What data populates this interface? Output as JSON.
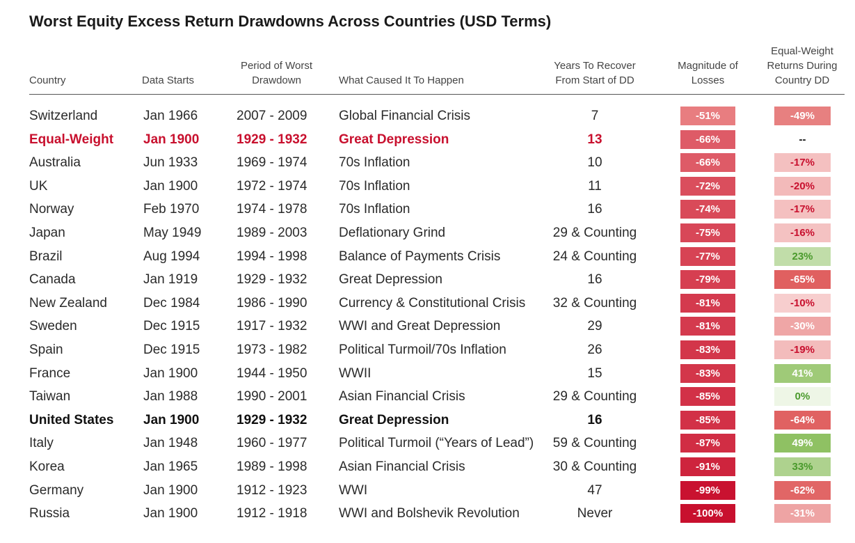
{
  "title": "Worst Equity Excess Return Drawdowns Across Countries (USD Terms)",
  "headers": {
    "country": "Country",
    "data_starts": "Data Starts",
    "period": "Period of Worst Drawdown",
    "cause": "What Caused It To Happen",
    "years": "Years To Recover From Start of DD",
    "magnitude": "Magnitude of Losses",
    "eqw": "Equal-Weight Returns During Country DD"
  },
  "colors": {
    "accent": "#c8102e",
    "negative_dark": "#c8102e",
    "negative_light": "#fbe2e2",
    "positive_dark": "#8fc163",
    "positive_light": "#eef6e6",
    "positive_text": "#4a9a2c",
    "negative_text": "#ffffff"
  },
  "chart_data": {
    "type": "table",
    "columns": [
      "Country",
      "Data Starts",
      "Period of Worst Drawdown",
      "What Caused It To Happen",
      "Years To Recover From Start of DD",
      "Magnitude of Losses",
      "Equal-Weight Returns During Country DD"
    ],
    "rows": [
      {
        "country": "Switzerland",
        "start": "Jan 1966",
        "period": "2007 - 2009",
        "cause": "Global Financial Crisis",
        "years": "7",
        "magnitude": "-51%",
        "mag_value": -51,
        "eqw": "-49%",
        "eqw_value": -49,
        "style": "normal"
      },
      {
        "country": "Equal-Weight",
        "start": "Jan 1900",
        "period": "1929 - 1932",
        "cause": "Great Depression",
        "years": "13",
        "magnitude": "-66%",
        "mag_value": -66,
        "eqw": "--",
        "eqw_value": null,
        "style": "accent"
      },
      {
        "country": "Australia",
        "start": "Jun 1933",
        "period": "1969 - 1974",
        "cause": "70s Inflation",
        "years": "10",
        "magnitude": "-66%",
        "mag_value": -66,
        "eqw": "-17%",
        "eqw_value": -17,
        "style": "normal"
      },
      {
        "country": "UK",
        "start": "Jan 1900",
        "period": "1972 - 1974",
        "cause": "70s Inflation",
        "years": "11",
        "magnitude": "-72%",
        "mag_value": -72,
        "eqw": "-20%",
        "eqw_value": -20,
        "style": "normal"
      },
      {
        "country": "Norway",
        "start": "Feb 1970",
        "period": "1974 - 1978",
        "cause": "70s Inflation",
        "years": "16",
        "magnitude": "-74%",
        "mag_value": -74,
        "eqw": "-17%",
        "eqw_value": -17,
        "style": "normal"
      },
      {
        "country": "Japan",
        "start": "May 1949",
        "period": "1989 - 2003",
        "cause": "Deflationary Grind",
        "years": "29 & Counting",
        "magnitude": "-75%",
        "mag_value": -75,
        "eqw": "-16%",
        "eqw_value": -16,
        "style": "normal"
      },
      {
        "country": "Brazil",
        "start": "Aug 1994",
        "period": "1994 - 1998",
        "cause": "Balance of Payments Crisis",
        "years": "24 & Counting",
        "magnitude": "-77%",
        "mag_value": -77,
        "eqw": "23%",
        "eqw_value": 23,
        "style": "normal"
      },
      {
        "country": "Canada",
        "start": "Jan 1919",
        "period": "1929 - 1932",
        "cause": "Great Depression",
        "years": "16",
        "magnitude": "-79%",
        "mag_value": -79,
        "eqw": "-65%",
        "eqw_value": -65,
        "style": "normal"
      },
      {
        "country": "New Zealand",
        "start": "Dec 1984",
        "period": "1986 - 1990",
        "cause": "Currency & Constitutional Crisis",
        "years": "32 & Counting",
        "magnitude": "-81%",
        "mag_value": -81,
        "eqw": "-10%",
        "eqw_value": -10,
        "style": "normal"
      },
      {
        "country": "Sweden",
        "start": "Dec 1915",
        "period": "1917 - 1932",
        "cause": "WWI and Great Depression",
        "years": "29",
        "magnitude": "-81%",
        "mag_value": -81,
        "eqw": "-30%",
        "eqw_value": -30,
        "style": "normal"
      },
      {
        "country": "Spain",
        "start": "Dec 1915",
        "period": "1973 - 1982",
        "cause": "Political Turmoil/70s Inflation",
        "years": "26",
        "magnitude": "-83%",
        "mag_value": -83,
        "eqw": "-19%",
        "eqw_value": -19,
        "style": "normal"
      },
      {
        "country": "France",
        "start": "Jan 1900",
        "period": "1944 - 1950",
        "cause": "WWII",
        "years": "15",
        "magnitude": "-83%",
        "mag_value": -83,
        "eqw": "41%",
        "eqw_value": 41,
        "style": "normal"
      },
      {
        "country": "Taiwan",
        "start": "Jan 1988",
        "period": "1990 - 2001",
        "cause": "Asian Financial Crisis",
        "years": "29 & Counting",
        "magnitude": "-85%",
        "mag_value": -85,
        "eqw": "0%",
        "eqw_value": 0,
        "style": "normal"
      },
      {
        "country": "United States",
        "start": "Jan 1900",
        "period": "1929 - 1932",
        "cause": "Great Depression",
        "years": "16",
        "magnitude": "-85%",
        "mag_value": -85,
        "eqw": "-64%",
        "eqw_value": -64,
        "style": "bold"
      },
      {
        "country": "Italy",
        "start": "Jan 1948",
        "period": "1960 - 1977",
        "cause": "Political Turmoil (“Years of Lead”)",
        "years": "59 & Counting",
        "magnitude": "-87%",
        "mag_value": -87,
        "eqw": "49%",
        "eqw_value": 49,
        "style": "normal"
      },
      {
        "country": "Korea",
        "start": "Jan 1965",
        "period": "1989 - 1998",
        "cause": "Asian Financial Crisis",
        "years": "30 & Counting",
        "magnitude": "-91%",
        "mag_value": -91,
        "eqw": "33%",
        "eqw_value": 33,
        "style": "normal"
      },
      {
        "country": "Germany",
        "start": "Jan 1900",
        "period": "1912 - 1923",
        "cause": "WWI",
        "years": "47",
        "magnitude": "-99%",
        "mag_value": -99,
        "eqw": "-62%",
        "eqw_value": -62,
        "style": "normal"
      },
      {
        "country": "Russia",
        "start": "Jan 1900",
        "period": "1912 - 1918",
        "cause": "WWI and Bolshevik Revolution",
        "years": "Never",
        "magnitude": "-100%",
        "mag_value": -100,
        "eqw": "-31%",
        "eqw_value": -31,
        "style": "normal"
      }
    ]
  }
}
